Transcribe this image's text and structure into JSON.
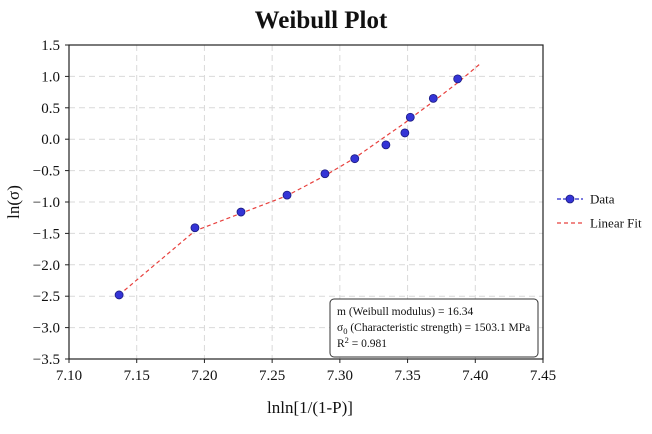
{
  "chart_data": {
    "type": "scatter",
    "title": "Weibull Plot",
    "xlabel": "lnln[1/(1-P)]",
    "ylabel": "ln(σ)",
    "xlim": [
      7.1,
      7.45
    ],
    "ylim": [
      -3.5,
      1.5
    ],
    "x_ticks": [
      "7.10",
      "7.15",
      "7.20",
      "7.25",
      "7.30",
      "7.35",
      "7.40",
      "7.45"
    ],
    "y_ticks": [
      "-3.5",
      "-3.0",
      "-2.5",
      "-2.0",
      "-1.5",
      "-1.0",
      "-0.5",
      "0.0",
      "0.5",
      "1.0",
      "1.5"
    ],
    "grid": true,
    "legend_position": "right",
    "series": [
      {
        "name": "Data",
        "style": "markers",
        "color": "#2b2bcc",
        "points": [
          [
            7.137,
            -2.48
          ],
          [
            7.193,
            -1.41
          ],
          [
            7.227,
            -1.16
          ],
          [
            7.261,
            -0.89
          ],
          [
            7.289,
            -0.55
          ],
          [
            7.311,
            -0.31
          ],
          [
            7.334,
            -0.09
          ],
          [
            7.348,
            0.1
          ],
          [
            7.352,
            0.35
          ],
          [
            7.369,
            0.65
          ],
          [
            7.387,
            0.96
          ]
        ]
      },
      {
        "name": "Linear Fit",
        "style": "dashed-line",
        "color": "#e8413e",
        "points": [
          [
            7.137,
            -2.48
          ],
          [
            7.193,
            -1.46
          ],
          [
            7.227,
            -1.18
          ],
          [
            7.261,
            -0.9
          ],
          [
            7.289,
            -0.58
          ],
          [
            7.311,
            -0.3
          ],
          [
            7.334,
            0.05
          ],
          [
            7.348,
            0.26
          ],
          [
            7.352,
            0.33
          ],
          [
            7.369,
            0.6
          ],
          [
            7.387,
            0.9
          ],
          [
            7.403,
            1.19
          ]
        ]
      }
    ],
    "annotation": {
      "line1": "m (Weibull modulus) = 16.34",
      "line2_prefix": "σ",
      "line2_sub": "0",
      "line2_suffix": " (Characteristic strength) = 1503.1 MPa",
      "line3_prefix": "R",
      "line3_sup": "2",
      "line3_suffix": " = 0.981"
    }
  }
}
